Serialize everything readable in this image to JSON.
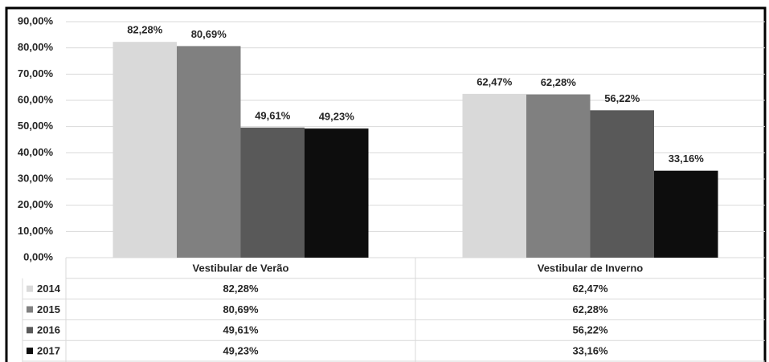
{
  "chart_data": {
    "type": "bar",
    "categories": [
      "Vestibular de Verão",
      "Vestibular de Inverno"
    ],
    "series": [
      {
        "name": "2014",
        "color": "#d9d9d9",
        "values": [
          82.28,
          62.47
        ],
        "value_labels": [
          "82,28%",
          "62,47%"
        ]
      },
      {
        "name": "2015",
        "color": "#808080",
        "values": [
          80.69,
          62.28
        ],
        "value_labels": [
          "80,69%",
          "62,28%"
        ]
      },
      {
        "name": "2016",
        "color": "#595959",
        "values": [
          49.61,
          56.22
        ],
        "value_labels": [
          "49,61%",
          "56,22%"
        ]
      },
      {
        "name": "2017",
        "color": "#0d0d0d",
        "values": [
          49.23,
          33.16
        ],
        "value_labels": [
          "49,23%",
          "33,16%"
        ]
      }
    ],
    "ylim": [
      0,
      90
    ],
    "yticks": [
      {
        "value": 0,
        "label": "0,00%"
      },
      {
        "value": 10,
        "label": "10,00%"
      },
      {
        "value": 20,
        "label": "20,00%"
      },
      {
        "value": 30,
        "label": "30,00%"
      },
      {
        "value": 40,
        "label": "40,00%"
      },
      {
        "value": 50,
        "label": "50,00%"
      },
      {
        "value": 60,
        "label": "60,00%"
      },
      {
        "value": 70,
        "label": "70,00%"
      },
      {
        "value": 80,
        "label": "80,00%"
      },
      {
        "value": 90,
        "label": "90,00%"
      }
    ],
    "grid": true
  }
}
